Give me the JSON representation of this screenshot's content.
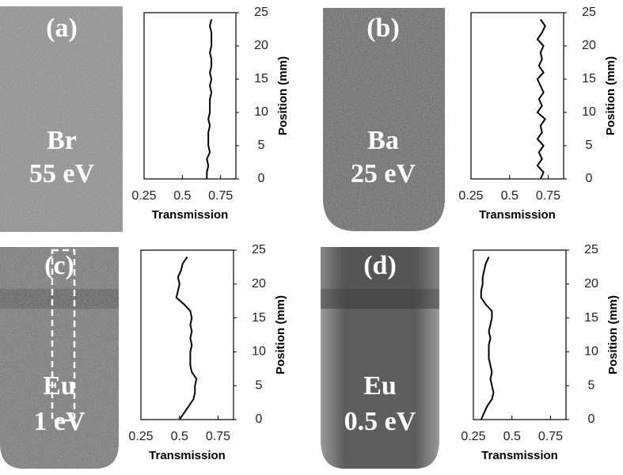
{
  "chart_data": [
    {
      "type": "line",
      "panel_label": "(a)",
      "image_labels": [
        "Br",
        "55 eV"
      ],
      "xlabel": "Transmission",
      "ylabel": "Position (mm)",
      "x": [
        0.66,
        0.66,
        0.67,
        0.66,
        0.68,
        0.67,
        0.67,
        0.67,
        0.68,
        0.67,
        0.68,
        0.68,
        0.68,
        0.69,
        0.68,
        0.69,
        0.68,
        0.69,
        0.69,
        0.68,
        0.69,
        0.69,
        0.69,
        0.68,
        0.69
      ],
      "y": [
        0,
        1,
        2,
        3,
        4,
        5,
        6,
        7,
        8,
        9,
        10,
        11,
        12,
        13,
        14,
        15,
        16,
        17,
        18,
        19,
        20,
        21,
        22,
        23,
        24
      ],
      "xlim": [
        0.25,
        0.85
      ],
      "ylim": [
        0,
        25
      ],
      "xticks": [
        0.25,
        0.5,
        0.75
      ],
      "yticks": [
        0,
        5,
        10,
        15,
        20,
        25
      ],
      "color": "#000000"
    },
    {
      "type": "line",
      "panel_label": "(b)",
      "image_labels": [
        "Ba",
        "25 eV"
      ],
      "xlabel": "Transmission",
      "ylabel": "Position (mm)",
      "x": [
        0.7,
        0.72,
        0.68,
        0.71,
        0.69,
        0.72,
        0.68,
        0.71,
        0.7,
        0.73,
        0.68,
        0.71,
        0.69,
        0.72,
        0.7,
        0.68,
        0.72,
        0.69,
        0.71,
        0.7,
        0.72,
        0.68,
        0.71,
        0.73,
        0.7
      ],
      "y": [
        0,
        1,
        2,
        3,
        4,
        5,
        6,
        7,
        8,
        9,
        10,
        11,
        12,
        13,
        14,
        15,
        16,
        17,
        18,
        19,
        20,
        21,
        22,
        23,
        24
      ],
      "xlim": [
        0.25,
        0.85
      ],
      "ylim": [
        0,
        25
      ],
      "xticks": [
        0.25,
        0.5,
        0.75
      ],
      "yticks": [
        0,
        5,
        10,
        15,
        20,
        25
      ],
      "color": "#000000"
    },
    {
      "type": "line",
      "panel_label": "(c)",
      "image_labels": [
        "Eu",
        "1 eV"
      ],
      "xlabel": "Transmission",
      "ylabel": "Position (mm)",
      "x": [
        0.5,
        0.53,
        0.56,
        0.59,
        0.6,
        0.6,
        0.61,
        0.58,
        0.57,
        0.57,
        0.57,
        0.58,
        0.57,
        0.58,
        0.57,
        0.58,
        0.57,
        0.53,
        0.48,
        0.49,
        0.5,
        0.49,
        0.51,
        0.52,
        0.55
      ],
      "y": [
        0,
        1,
        2,
        3,
        4,
        5,
        6,
        7,
        8,
        9,
        10,
        11,
        12,
        13,
        14,
        15,
        16,
        17,
        18,
        19,
        20,
        21,
        22,
        23,
        24
      ],
      "xlim": [
        0.25,
        0.85
      ],
      "ylim": [
        0,
        25
      ],
      "xticks": [
        0.25,
        0.5,
        0.75
      ],
      "yticks": [
        0,
        5,
        10,
        15,
        20,
        25
      ],
      "color": "#000000"
    },
    {
      "type": "line",
      "panel_label": "(d)",
      "image_labels": [
        "Eu",
        "0.5 eV"
      ],
      "xlabel": "Transmission",
      "ylabel": "Position (mm)",
      "x": [
        0.3,
        0.32,
        0.34,
        0.37,
        0.38,
        0.37,
        0.36,
        0.37,
        0.36,
        0.35,
        0.35,
        0.35,
        0.36,
        0.35,
        0.36,
        0.37,
        0.37,
        0.33,
        0.3,
        0.3,
        0.31,
        0.31,
        0.32,
        0.33,
        0.35
      ],
      "y": [
        0,
        1,
        2,
        3,
        4,
        5,
        6,
        7,
        8,
        9,
        10,
        11,
        12,
        13,
        14,
        15,
        16,
        17,
        18,
        19,
        20,
        21,
        22,
        23,
        24
      ],
      "xlim": [
        0.25,
        0.85
      ],
      "ylim": [
        0,
        25
      ],
      "xticks": [
        0.25,
        0.5,
        0.75
      ],
      "yticks": [
        0,
        5,
        10,
        15,
        20,
        25
      ],
      "color": "#000000"
    }
  ]
}
